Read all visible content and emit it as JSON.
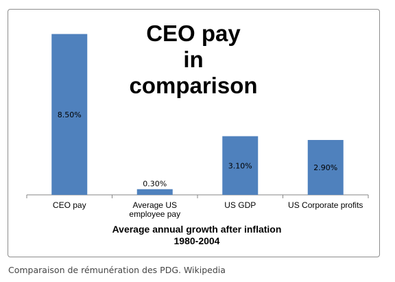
{
  "chart_data": {
    "type": "bar",
    "title": "CEO pay in comparison",
    "title_lines": [
      "CEO pay",
      "in comparison"
    ],
    "categories": [
      "CEO pay",
      "Average US employee pay",
      "US GDP",
      "US Corporate profits"
    ],
    "category_lines": [
      [
        "CEO pay"
      ],
      [
        "Average US",
        "employee pay"
      ],
      [
        "US GDP"
      ],
      [
        "US Corporate profits"
      ]
    ],
    "values": [
      8.5,
      0.3,
      3.1,
      2.9
    ],
    "data_labels": [
      "8.50%",
      "0.30%",
      "3.10%",
      "2.90%"
    ],
    "xlabel_lines": [
      "Average annual growth after inflation",
      "1980-2004"
    ],
    "ylabel": "",
    "ylim": [
      0,
      9
    ],
    "grid": false,
    "bar_color": "#4f81bd"
  },
  "caption": "Comparaison de rémunération des PDG. Wikipedia"
}
